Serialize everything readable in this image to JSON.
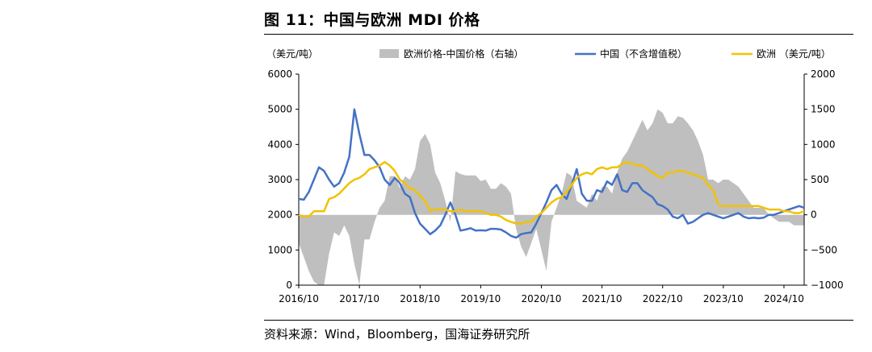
{
  "header": {
    "title": "图 11：中国与欧洲 MDI 价格"
  },
  "footer": {
    "source": "资料来源：Wind，Bloomberg，国海证券研究所"
  },
  "colors": {
    "china": "#4472C4",
    "europe": "#F2C200",
    "spread": "#BFBFBF"
  },
  "chart_data": {
    "type": "line",
    "title": "",
    "left_unit": "（美元/吨）",
    "ylim_left": [
      0,
      6000
    ],
    "ylim_right": [
      -1000,
      2000
    ],
    "yticks_left": [
      "0",
      "1000",
      "2000",
      "3000",
      "4000",
      "5000",
      "6000"
    ],
    "yticks_right": [
      "−1000",
      "−500",
      "0",
      "500",
      "1000",
      "1500",
      "2000"
    ],
    "x_ticks": [
      "2016/10",
      "2017/10",
      "2018/10",
      "2019/10",
      "2020/10",
      "2021/10",
      "2022/10",
      "2023/10",
      "2024/10"
    ],
    "x_range": [
      "2016/10",
      "2025/02"
    ],
    "legend_position": "top",
    "series": [
      {
        "name": "欧洲价格-中国价格（右轴）",
        "kind": "area",
        "axis": "right",
        "color": "#BFBFBF",
        "x": [
          "2016/10",
          "2016/11",
          "2016/12",
          "2017/01",
          "2017/02",
          "2017/03",
          "2017/04",
          "2017/05",
          "2017/06",
          "2017/07",
          "2017/08",
          "2017/09",
          "2017/10",
          "2017/11",
          "2017/12",
          "2018/01",
          "2018/02",
          "2018/03",
          "2018/04",
          "2018/05",
          "2018/06",
          "2018/07",
          "2018/08",
          "2018/09",
          "2018/10",
          "2018/11",
          "2018/12",
          "2019/01",
          "2019/02",
          "2019/03",
          "2019/04",
          "2019/05",
          "2019/06",
          "2019/07",
          "2019/08",
          "2019/09",
          "2019/10",
          "2019/11",
          "2019/12",
          "2020/01",
          "2020/02",
          "2020/03",
          "2020/04",
          "2020/05",
          "2020/06",
          "2020/07",
          "2020/08",
          "2020/09",
          "2020/10",
          "2020/11",
          "2020/12",
          "2021/01",
          "2021/02",
          "2021/03",
          "2021/04",
          "2021/05",
          "2021/06",
          "2021/07",
          "2021/08",
          "2021/09",
          "2021/10",
          "2021/11",
          "2021/12",
          "2022/01",
          "2022/02",
          "2022/03",
          "2022/04",
          "2022/05",
          "2022/06",
          "2022/07",
          "2022/08",
          "2022/09",
          "2022/10",
          "2022/11",
          "2022/12",
          "2023/01",
          "2023/02",
          "2023/03",
          "2023/04",
          "2023/05",
          "2023/06",
          "2023/07",
          "2023/08",
          "2023/09",
          "2023/10",
          "2023/11",
          "2023/12",
          "2024/01",
          "2024/02",
          "2024/03",
          "2024/04",
          "2024/05",
          "2024/06",
          "2024/07",
          "2024/08",
          "2024/09",
          "2024/10",
          "2024/11",
          "2024/12",
          "2025/01",
          "2025/02"
        ],
        "values": [
          -400,
          -600,
          -800,
          -950,
          -1000,
          -1000,
          -550,
          -250,
          -300,
          -150,
          -300,
          -700,
          -1000,
          -350,
          -350,
          -100,
          100,
          200,
          550,
          550,
          380,
          550,
          500,
          650,
          1050,
          1150,
          1000,
          600,
          450,
          200,
          -100,
          620,
          580,
          560,
          560,
          560,
          480,
          500,
          370,
          370,
          450,
          400,
          300,
          -200,
          -450,
          -600,
          -400,
          -200,
          -500,
          -800,
          -100,
          100,
          300,
          600,
          550,
          200,
          150,
          100,
          300,
          200,
          400,
          400,
          300,
          600,
          800,
          900,
          1050,
          1200,
          1350,
          1200,
          1300,
          1500,
          1450,
          1300,
          1300,
          1400,
          1380,
          1300,
          1200,
          1050,
          850,
          500,
          500,
          450,
          500,
          500,
          450,
          400,
          300,
          200,
          100,
          100,
          100,
          0,
          -50,
          -100,
          -100,
          -100,
          -150,
          -150,
          -150
        ]
      },
      {
        "name": "中国（不含增值税）",
        "kind": "line",
        "axis": "left",
        "color": "#4472C4",
        "x": [
          "2016/10",
          "2016/11",
          "2016/12",
          "2017/01",
          "2017/02",
          "2017/03",
          "2017/04",
          "2017/05",
          "2017/06",
          "2017/07",
          "2017/08",
          "2017/09",
          "2017/10",
          "2017/11",
          "2017/12",
          "2018/01",
          "2018/02",
          "2018/03",
          "2018/04",
          "2018/05",
          "2018/06",
          "2018/07",
          "2018/08",
          "2018/09",
          "2018/10",
          "2018/11",
          "2018/12",
          "2019/01",
          "2019/02",
          "2019/03",
          "2019/04",
          "2019/05",
          "2019/06",
          "2019/07",
          "2019/08",
          "2019/09",
          "2019/10",
          "2019/11",
          "2019/12",
          "2020/01",
          "2020/02",
          "2020/03",
          "2020/04",
          "2020/05",
          "2020/06",
          "2020/07",
          "2020/08",
          "2020/09",
          "2020/10",
          "2020/11",
          "2020/12",
          "2021/01",
          "2021/02",
          "2021/03",
          "2021/04",
          "2021/05",
          "2021/06",
          "2021/07",
          "2021/08",
          "2021/09",
          "2021/10",
          "2021/11",
          "2021/12",
          "2022/01",
          "2022/02",
          "2022/03",
          "2022/04",
          "2022/05",
          "2022/06",
          "2022/07",
          "2022/08",
          "2022/09",
          "2022/10",
          "2022/11",
          "2022/12",
          "2023/01",
          "2023/02",
          "2023/03",
          "2023/04",
          "2023/05",
          "2023/06",
          "2023/07",
          "2023/08",
          "2023/09",
          "2023/10",
          "2023/11",
          "2023/12",
          "2024/01",
          "2024/02",
          "2024/03",
          "2024/04",
          "2024/05",
          "2024/06",
          "2024/07",
          "2024/08",
          "2024/09",
          "2024/10",
          "2024/11",
          "2024/12",
          "2025/01",
          "2025/02"
        ],
        "values": [
          2450,
          2430,
          2650,
          3000,
          3350,
          3250,
          3000,
          2800,
          2900,
          3200,
          3650,
          5000,
          4300,
          3700,
          3700,
          3550,
          3350,
          3000,
          2850,
          3050,
          2900,
          2600,
          2500,
          2050,
          1750,
          1600,
          1450,
          1550,
          1700,
          2000,
          2350,
          2000,
          1550,
          1580,
          1620,
          1550,
          1560,
          1550,
          1600,
          1600,
          1580,
          1500,
          1400,
          1350,
          1450,
          1480,
          1500,
          1750,
          2050,
          2350,
          2700,
          2850,
          2600,
          2450,
          2850,
          3300,
          2600,
          2400,
          2400,
          2700,
          2650,
          2950,
          2850,
          3150,
          2700,
          2650,
          2900,
          2900,
          2700,
          2600,
          2500,
          2300,
          2250,
          2150,
          1950,
          1900,
          2000,
          1750,
          1800,
          1900,
          2000,
          2050,
          2000,
          1950,
          1900,
          1950,
          2000,
          2050,
          1950,
          1900,
          1920,
          1900,
          1920,
          2000,
          2000,
          2050,
          2100,
          2150,
          2200,
          2250,
          2200
        ]
      },
      {
        "name": "欧洲 （美元/吨）",
        "kind": "line",
        "axis": "left",
        "color": "#F2C200",
        "x": [
          "2016/10",
          "2016/11",
          "2016/12",
          "2017/01",
          "2017/02",
          "2017/03",
          "2017/04",
          "2017/05",
          "2017/06",
          "2017/07",
          "2017/08",
          "2017/09",
          "2017/10",
          "2017/11",
          "2017/12",
          "2018/01",
          "2018/02",
          "2018/03",
          "2018/04",
          "2018/05",
          "2018/06",
          "2018/07",
          "2018/08",
          "2018/09",
          "2018/10",
          "2018/11",
          "2018/12",
          "2019/01",
          "2019/02",
          "2019/03",
          "2019/04",
          "2019/05",
          "2019/06",
          "2019/07",
          "2019/08",
          "2019/09",
          "2019/10",
          "2019/11",
          "2019/12",
          "2020/01",
          "2020/02",
          "2020/03",
          "2020/04",
          "2020/05",
          "2020/06",
          "2020/07",
          "2020/08",
          "2020/09",
          "2020/10",
          "2020/11",
          "2020/12",
          "2021/01",
          "2021/02",
          "2021/03",
          "2021/04",
          "2021/05",
          "2021/06",
          "2021/07",
          "2021/08",
          "2021/09",
          "2021/10",
          "2021/11",
          "2021/12",
          "2022/01",
          "2022/02",
          "2022/03",
          "2022/04",
          "2022/05",
          "2022/06",
          "2022/07",
          "2022/08",
          "2022/09",
          "2022/10",
          "2022/11",
          "2022/12",
          "2023/01",
          "2023/02",
          "2023/03",
          "2023/04",
          "2023/05",
          "2023/06",
          "2023/07",
          "2023/08",
          "2023/09",
          "2023/10",
          "2023/11",
          "2023/12",
          "2024/01",
          "2024/02",
          "2024/03",
          "2024/04",
          "2024/05",
          "2024/06",
          "2024/07",
          "2024/08",
          "2024/09",
          "2024/10",
          "2024/11",
          "2024/12",
          "2025/01",
          "2025/02"
        ],
        "values": [
          2000,
          1950,
          1950,
          2100,
          2100,
          2100,
          2450,
          2500,
          2600,
          2750,
          2900,
          3000,
          3050,
          3150,
          3300,
          3350,
          3400,
          3500,
          3400,
          3250,
          3000,
          2900,
          2750,
          2700,
          2550,
          2400,
          2100,
          2150,
          2150,
          2150,
          2100,
          2100,
          2150,
          2100,
          2100,
          2100,
          2100,
          2050,
          2000,
          2000,
          1950,
          1850,
          1800,
          1750,
          1750,
          1800,
          1800,
          1950,
          2050,
          2200,
          2350,
          2450,
          2500,
          2650,
          2850,
          3050,
          3150,
          3200,
          3150,
          3300,
          3350,
          3300,
          3350,
          3350,
          3450,
          3500,
          3450,
          3400,
          3400,
          3300,
          3200,
          3100,
          3050,
          3200,
          3200,
          3250,
          3250,
          3200,
          3150,
          3100,
          3050,
          2850,
          2700,
          2300,
          2250,
          2250,
          2250,
          2250,
          2250,
          2250,
          2250,
          2250,
          2200,
          2150,
          2150,
          2150,
          2100,
          2100,
          2050,
          2050,
          2100
        ]
      }
    ]
  }
}
